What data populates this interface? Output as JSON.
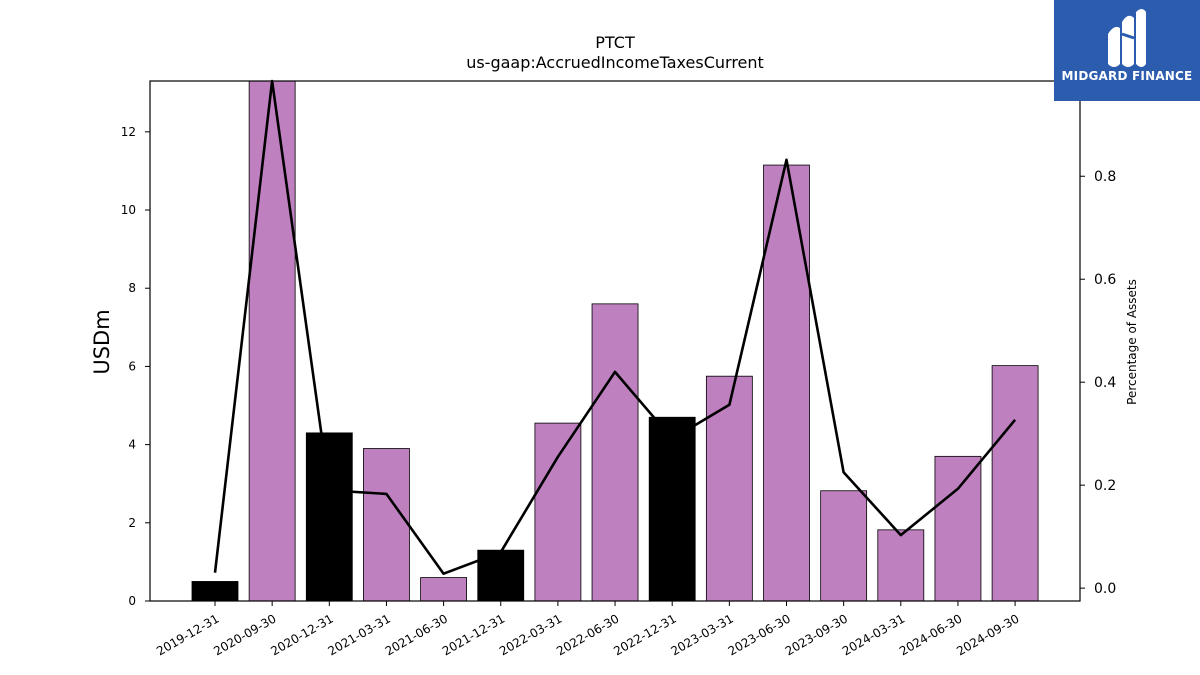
{
  "chart_data": {
    "type": "bar",
    "title": "PTCT",
    "subtitle": "us-gaap:AccruedIncomeTaxesCurrent",
    "ylabel": "USDm",
    "y2label": "Percentage of Assets",
    "ylim": [
      0,
      13.3
    ],
    "y2lim": [
      -0.025,
      0.985
    ],
    "yticks": [
      0,
      2,
      4,
      6,
      8,
      10,
      12
    ],
    "y2ticks": [
      0.0,
      0.2,
      0.4,
      0.6,
      0.8
    ],
    "y2tick_labels": [
      "0.0",
      "0.2",
      "0.4",
      "0.6",
      "0.8"
    ],
    "categories": [
      "2019-12-31",
      "2020-09-30",
      "2020-12-31",
      "2021-03-31",
      "2021-06-30",
      "2021-12-31",
      "2022-03-31",
      "2022-06-30",
      "2022-12-31",
      "2023-03-31",
      "2023-06-30",
      "2023-09-30",
      "2024-03-31",
      "2024-06-30",
      "2024-09-30"
    ],
    "series": [
      {
        "type": "bar",
        "axis": "left",
        "values": [
          0.5,
          13.3,
          4.3,
          3.9,
          0.6,
          1.3,
          4.55,
          7.6,
          4.7,
          5.75,
          11.15,
          2.82,
          1.82,
          3.7,
          6.02
        ],
        "colors": [
          "#000000",
          "#bf80bf",
          "#000000",
          "#bf80bf",
          "#bf80bf",
          "#000000",
          "#bf80bf",
          "#bf80bf",
          "#000000",
          "#bf80bf",
          "#bf80bf",
          "#bf80bf",
          "#bf80bf",
          "#bf80bf",
          "#bf80bf"
        ]
      },
      {
        "type": "line",
        "axis": "right",
        "color": "#000000",
        "values": [
          0.03,
          0.985,
          0.19,
          0.183,
          0.028,
          0.07,
          0.255,
          0.42,
          0.29,
          0.356,
          0.832,
          0.225,
          0.103,
          0.193,
          0.327
        ]
      }
    ],
    "grid": false,
    "legend": "none"
  },
  "logo": {
    "text": "MIDGARD FINANCE",
    "icon": "midgard-logo-mark",
    "background": "#2b5cad"
  }
}
